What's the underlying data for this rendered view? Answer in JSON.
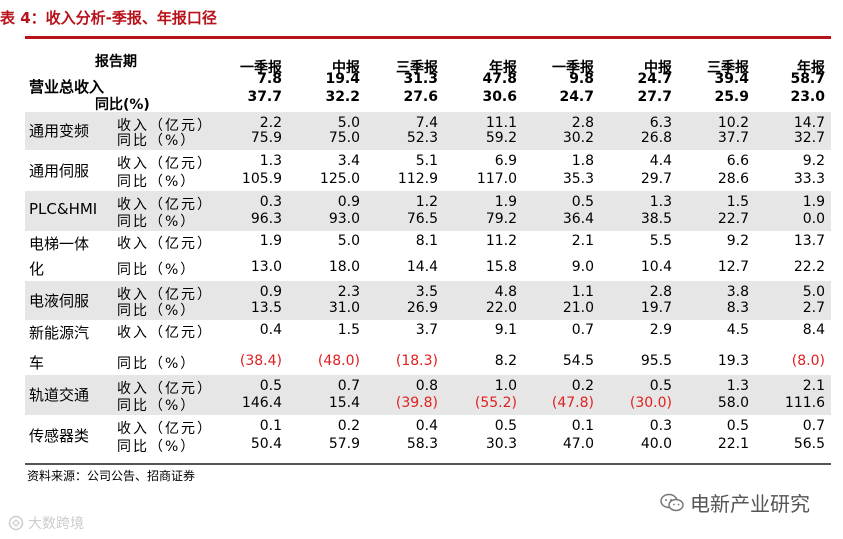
{
  "title": "表 4：收入分析-季报、年报口径",
  "header": {
    "row_header": "报告期",
    "columns": [
      "一季报",
      "中报",
      "三季报",
      "年报",
      "一季报",
      "中报",
      "三季报",
      "年报"
    ]
  },
  "summary": {
    "label": "营业总收入",
    "yoy_label": "同比(%)",
    "revenue": [
      "7.8",
      "19.4",
      "31.3",
      "47.8",
      "9.8",
      "24.7",
      "39.4",
      "58.7"
    ],
    "yoy": [
      "37.7",
      "32.2",
      "27.6",
      "30.6",
      "24.7",
      "27.7",
      "25.9",
      "23.0"
    ]
  },
  "segments": [
    {
      "name": "通用变频",
      "name2": "",
      "rev_label": "收入（亿元）",
      "yoy_label": "同比（%）",
      "revenue": [
        "2.2",
        "5.0",
        "7.4",
        "11.1",
        "2.8",
        "6.3",
        "10.2",
        "14.7"
      ],
      "yoy": [
        "75.9",
        "75.0",
        "52.3",
        "59.2",
        "30.2",
        "26.8",
        "37.7",
        "32.7"
      ]
    },
    {
      "name": "通用伺服",
      "name2": "",
      "rev_label": "收入（亿元）",
      "yoy_label": "同比（%）",
      "revenue": [
        "1.3",
        "3.4",
        "5.1",
        "6.9",
        "1.8",
        "4.4",
        "6.6",
        "9.2"
      ],
      "yoy": [
        "105.9",
        "125.0",
        "112.9",
        "117.0",
        "35.3",
        "29.7",
        "28.6",
        "33.3"
      ]
    },
    {
      "name": "PLC&HMI",
      "name2": "",
      "rev_label": "收入（亿元）",
      "yoy_label": "同比（%）",
      "revenue": [
        "0.3",
        "0.9",
        "1.2",
        "1.9",
        "0.5",
        "1.3",
        "1.5",
        "1.9"
      ],
      "yoy": [
        "96.3",
        "93.0",
        "76.5",
        "79.2",
        "36.4",
        "38.5",
        "22.7",
        "0.0"
      ]
    },
    {
      "name": "电梯一体",
      "name2": "化",
      "rev_label": "收入（亿元）",
      "yoy_label": "同比（%）",
      "revenue": [
        "1.9",
        "5.0",
        "8.1",
        "11.2",
        "2.1",
        "5.5",
        "9.2",
        "13.7"
      ],
      "yoy": [
        "13.0",
        "18.0",
        "14.4",
        "15.8",
        "9.0",
        "10.4",
        "12.7",
        "22.2"
      ]
    },
    {
      "name": "电液伺服",
      "name2": "",
      "rev_label": "收入（亿元）",
      "yoy_label": "同比（%）",
      "revenue": [
        "0.9",
        "2.3",
        "3.5",
        "4.8",
        "1.1",
        "2.8",
        "3.8",
        "5.0"
      ],
      "yoy": [
        "13.5",
        "31.0",
        "26.9",
        "22.0",
        "21.0",
        "19.7",
        "8.3",
        "2.7"
      ]
    },
    {
      "name": "新能源汽",
      "name2": "车",
      "rev_label": "收入（亿元）",
      "yoy_label": "同比（%）",
      "revenue": [
        "0.4",
        "1.5",
        "3.7",
        "9.1",
        "0.7",
        "2.9",
        "4.5",
        "8.4"
      ],
      "yoy": [
        "(38.4)",
        "(48.0)",
        "(18.3)",
        "8.2",
        "54.5",
        "95.5",
        "19.3",
        "(8.0)"
      ]
    },
    {
      "name": "轨道交通",
      "name2": "",
      "rev_label": "收入（亿元）",
      "yoy_label": "同比（%）",
      "revenue": [
        "0.5",
        "0.7",
        "0.8",
        "1.0",
        "0.2",
        "0.5",
        "1.3",
        "2.1"
      ],
      "yoy": [
        "146.4",
        "15.4",
        "(39.8)",
        "(55.2)",
        "(47.8)",
        "(30.0)",
        "58.0",
        "111.6"
      ]
    },
    {
      "name": "传感器类",
      "name2": "",
      "rev_label": "收入（亿元）",
      "yoy_label": "同比（%）",
      "revenue": [
        "0.1",
        "0.2",
        "0.4",
        "0.5",
        "0.1",
        "0.3",
        "0.5",
        "0.7"
      ],
      "yoy": [
        "50.4",
        "57.9",
        "58.3",
        "30.3",
        "47.0",
        "40.0",
        "22.1",
        "56.5"
      ]
    }
  ],
  "source": "资料来源：公司公告、招商证券",
  "wechat_label": "电新产业研究",
  "watermark": "大数跨境",
  "colors": {
    "accent": "#b8121b",
    "negative": "#e02020",
    "shade": "#e6e6e6"
  }
}
